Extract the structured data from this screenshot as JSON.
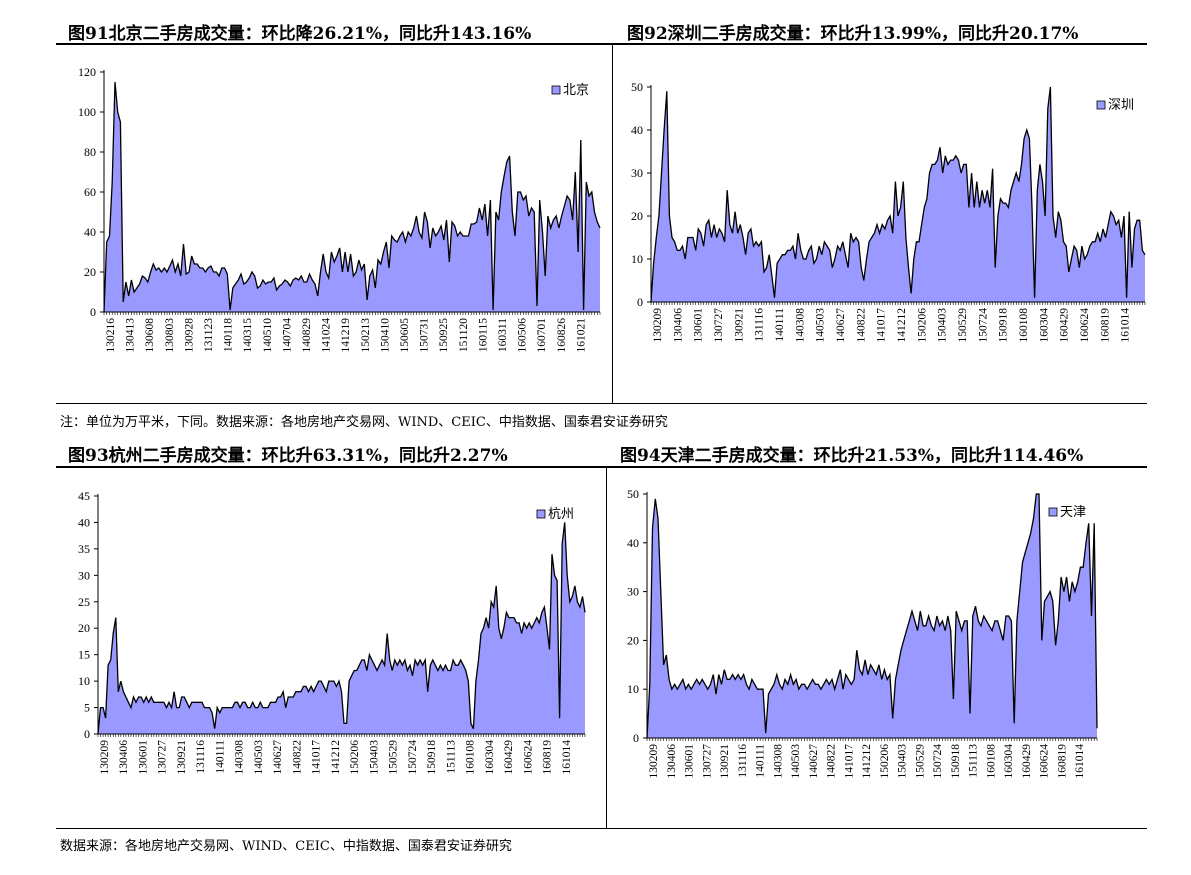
{
  "panels": [
    {
      "title": "图91北京二手房成交量：环比降26.21%，同比升143.16%"
    },
    {
      "title": "图92深圳二手房成交量：环比升13.99%，同比升20.17%"
    },
    {
      "title": "图93杭州二手房成交量：环比升63.31%，同比升2.27%"
    },
    {
      "title": "图94天津二手房成交量：环比升21.53%，同比升114.46%"
    }
  ],
  "note": "注：单位为万平米，下同。数据来源：各地房地产交易网、WIND、CEIC、中指数据、国泰君安证券研究",
  "footer": "数据来源：各地房地产交易网、WIND、CEIC、中指数据、国泰君安证券研究",
  "colors": {
    "fill": "#9999ff",
    "line": "#000000"
  },
  "chart_data": [
    {
      "type": "area",
      "legend": "北京",
      "legend_position": "top-right",
      "ylim": [
        0,
        120
      ],
      "yticks": [
        0,
        20,
        40,
        60,
        80,
        100,
        120
      ],
      "xtick_labels": [
        "130216",
        "130413",
        "130608",
        "130803",
        "130928",
        "131123",
        "140118",
        "140315",
        "140510",
        "140704",
        "140829",
        "141024",
        "141219",
        "150213",
        "150410",
        "150605",
        "150731",
        "150925",
        "151120",
        "160115",
        "160311",
        "160506",
        "160701",
        "160826",
        "161021"
      ],
      "values": [
        0,
        35,
        38,
        65,
        115,
        100,
        95,
        5,
        15,
        8,
        16,
        10,
        12,
        14,
        18,
        17,
        15,
        20,
        24,
        21,
        22,
        20,
        22,
        20,
        23,
        26,
        20,
        24,
        18,
        34,
        19,
        20,
        28,
        24,
        24,
        22,
        22,
        20,
        22,
        23,
        20,
        20,
        18,
        22,
        22,
        19,
        1,
        12,
        14,
        16,
        19,
        14,
        15,
        17,
        20,
        18,
        12,
        13,
        16,
        14,
        15,
        15,
        17,
        11,
        13,
        14,
        16,
        15,
        13,
        16,
        17,
        16,
        18,
        15,
        15,
        19,
        16,
        14,
        8,
        20,
        29,
        20,
        17,
        30,
        25,
        28,
        32,
        20,
        30,
        20,
        29,
        18,
        20,
        26,
        21,
        24,
        6,
        18,
        21,
        12,
        26,
        24,
        30,
        35,
        22,
        38,
        36,
        35,
        38,
        40,
        35,
        40,
        38,
        42,
        48,
        40,
        37,
        50,
        45,
        32,
        42,
        38,
        40,
        43,
        36,
        46,
        25,
        45,
        43,
        38,
        40,
        38,
        38,
        38,
        44,
        44,
        45,
        52,
        46,
        54,
        38,
        56,
        1,
        50,
        46,
        60,
        68,
        75,
        78,
        50,
        38,
        60,
        60,
        56,
        58,
        48,
        52,
        50,
        3,
        56,
        40,
        18,
        48,
        42,
        46,
        48,
        42,
        48,
        53,
        58,
        56,
        46,
        70,
        30,
        86,
        1,
        65,
        58,
        60,
        50,
        45,
        42
      ]
    },
    {
      "type": "area",
      "legend": "深圳",
      "legend_position": "top-right",
      "ylim": [
        0,
        50
      ],
      "yticks": [
        0,
        10,
        20,
        30,
        40,
        50
      ],
      "xtick_labels": [
        "130209",
        "130406",
        "130601",
        "130727",
        "130921",
        "131116",
        "140111",
        "140308",
        "140503",
        "140627",
        "140822",
        "141017",
        "141212",
        "150206",
        "150403",
        "150529",
        "150724",
        "150918",
        "160108",
        "160304",
        "160429",
        "160624",
        "160819",
        "161014"
      ],
      "values": [
        0,
        9,
        15,
        20,
        30,
        40,
        49,
        20,
        15,
        14,
        12,
        12,
        13,
        10,
        15,
        15,
        15,
        12,
        17,
        16,
        13,
        18,
        19,
        15,
        18,
        15,
        17,
        16,
        14,
        26,
        18,
        16,
        21,
        16,
        18,
        15,
        11,
        16,
        17,
        13,
        14,
        13,
        14,
        7,
        8,
        11,
        6,
        1,
        9,
        10,
        11,
        11,
        12,
        12,
        13,
        10,
        16,
        12,
        10,
        10,
        12,
        13,
        9,
        10,
        13,
        11,
        14,
        13,
        12,
        8,
        10,
        13,
        12,
        14,
        11,
        8,
        16,
        14,
        15,
        14,
        8,
        5,
        10,
        14,
        15,
        16,
        18,
        16,
        18,
        17,
        19,
        20,
        16,
        28,
        20,
        22,
        28,
        15,
        8,
        2,
        10,
        14,
        14,
        18,
        22,
        24,
        30,
        32,
        32,
        33,
        36,
        30,
        34,
        32,
        33,
        33,
        34,
        33,
        30,
        32,
        32,
        22,
        30,
        22,
        28,
        22,
        26,
        23,
        26,
        22,
        31,
        8,
        20,
        24,
        23,
        23,
        22,
        26,
        28,
        30,
        28,
        32,
        38,
        40,
        38,
        22,
        1,
        26,
        32,
        28,
        20,
        45,
        50,
        20,
        15,
        21,
        19,
        14,
        13,
        7,
        10,
        13,
        12,
        8,
        13,
        10,
        11,
        13,
        14,
        14,
        16,
        14,
        17,
        15,
        18,
        21,
        20,
        18,
        19,
        15,
        20,
        1,
        21,
        8,
        17,
        19,
        19,
        12,
        11
      ]
    },
    {
      "type": "area",
      "legend": "杭州",
      "legend_position": "top-right",
      "ylim": [
        0,
        45
      ],
      "yticks": [
        0,
        5,
        10,
        15,
        20,
        25,
        30,
        35,
        40,
        45
      ],
      "xtick_labels": [
        "130209",
        "130406",
        "130601",
        "130727",
        "130921",
        "131116",
        "140111",
        "140308",
        "140503",
        "140627",
        "140822",
        "141017",
        "141212",
        "150206",
        "150403",
        "150529",
        "150724",
        "150918",
        "151113",
        "160108",
        "160304",
        "160429",
        "160624",
        "160819",
        "161014"
      ],
      "values": [
        0,
        5,
        5,
        3,
        13,
        14,
        19,
        22,
        8,
        10,
        8,
        7,
        6,
        5,
        7,
        6,
        7,
        7,
        6,
        7,
        6,
        7,
        6,
        6,
        6,
        6,
        6,
        5,
        6,
        5,
        8,
        5,
        5,
        7,
        7,
        6,
        5,
        6,
        6,
        6,
        6,
        6,
        5,
        5,
        5,
        4,
        1,
        5,
        4,
        5,
        5,
        5,
        5,
        5,
        6,
        6,
        5,
        6,
        6,
        5,
        5,
        6,
        5,
        5,
        6,
        5,
        5,
        5,
        6,
        6,
        6,
        7,
        7,
        8,
        5,
        7,
        7,
        7,
        8,
        8,
        8,
        9,
        9,
        8,
        9,
        8,
        9,
        10,
        10,
        9,
        8,
        10,
        10,
        10,
        9,
        10,
        8,
        2,
        2,
        10,
        11,
        12,
        12,
        13,
        14,
        14,
        12,
        15,
        14,
        13,
        12,
        13,
        14,
        13,
        19,
        14,
        12,
        14,
        13,
        14,
        13,
        14,
        12,
        13,
        11,
        14,
        13,
        14,
        13,
        14,
        8,
        13,
        14,
        13,
        12,
        13,
        12,
        13,
        12,
        12,
        14,
        13,
        13,
        14,
        13,
        12,
        10,
        2,
        1,
        10,
        14,
        19,
        20,
        22,
        20,
        25,
        24,
        28,
        20,
        18,
        20,
        23,
        22,
        22,
        22,
        21,
        21,
        19,
        21,
        20,
        21,
        20,
        21,
        22,
        21,
        23,
        24,
        20,
        16,
        34,
        30,
        29,
        3,
        36,
        40,
        30,
        25,
        26,
        28,
        25,
        24,
        26,
        23
      ]
    },
    {
      "type": "area",
      "legend": "天津",
      "legend_position": "top-right",
      "ylim": [
        0,
        50
      ],
      "yticks": [
        0,
        10,
        20,
        30,
        40,
        50
      ],
      "xtick_labels": [
        "130209",
        "130406",
        "130601",
        "130727",
        "130921",
        "131116",
        "140111",
        "140308",
        "140503",
        "140627",
        "140822",
        "141017",
        "141212",
        "150206",
        "150403",
        "150529",
        "150724",
        "150918",
        "151113",
        "160108",
        "160304",
        "160429",
        "160624",
        "160819",
        "161014"
      ],
      "values": [
        0,
        11,
        43,
        49,
        45,
        30,
        15,
        17,
        12,
        10,
        11,
        10,
        11,
        12,
        10,
        11,
        10,
        11,
        12,
        11,
        12,
        11,
        10,
        11,
        13,
        9,
        13,
        11,
        14,
        12,
        12,
        13,
        12,
        13,
        12,
        13,
        11,
        10,
        12,
        11,
        10,
        10,
        10,
        1,
        9,
        10,
        11,
        13,
        11,
        10,
        12,
        11,
        13,
        11,
        12,
        10,
        11,
        11,
        10,
        11,
        12,
        11,
        11,
        10,
        11,
        12,
        11,
        12,
        10,
        12,
        14,
        10,
        13,
        12,
        11,
        12,
        18,
        14,
        13,
        16,
        13,
        15,
        14,
        13,
        15,
        12,
        14,
        12,
        13,
        4,
        12,
        15,
        18,
        20,
        22,
        24,
        26,
        24,
        22,
        26,
        23,
        23,
        25,
        23,
        22,
        25,
        23,
        24,
        22,
        25,
        22,
        8,
        26,
        24,
        22,
        24,
        24,
        5,
        25,
        27,
        24,
        23,
        25,
        24,
        23,
        22,
        24,
        24,
        22,
        20,
        25,
        25,
        24,
        3,
        24,
        30,
        36,
        38,
        40,
        42,
        45,
        55,
        50,
        20,
        28,
        29,
        30,
        28,
        19,
        24,
        33,
        30,
        33,
        28,
        32,
        30,
        32,
        35,
        35,
        40,
        44,
        25,
        44,
        2
      ]
    }
  ]
}
